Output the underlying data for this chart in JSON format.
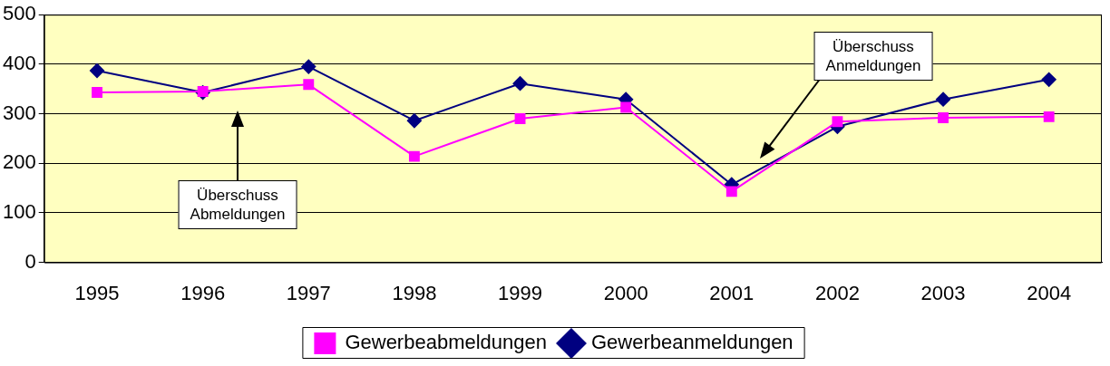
{
  "chart_data": {
    "type": "line",
    "categories": [
      "1995",
      "1996",
      "1997",
      "1998",
      "1999",
      "2000",
      "2001",
      "2002",
      "2003",
      "2004"
    ],
    "series": [
      {
        "name": "Gewerbeanmeldungen",
        "color": "#000080",
        "marker": "diamond",
        "values": [
          387,
          343,
          395,
          286,
          361,
          329,
          157,
          274,
          329,
          369
        ]
      },
      {
        "name": "Gewerbeabmeldungen",
        "color": "#ff00ff",
        "marker": "square",
        "values": [
          343,
          345,
          359,
          214,
          290,
          313,
          143,
          284,
          292,
          294
        ]
      }
    ],
    "ylim": [
      0,
      500
    ],
    "yticks": [
      0,
      100,
      200,
      300,
      400,
      500
    ],
    "grid": "y",
    "legend": "bottom",
    "line_style": "solid",
    "annotations": [
      "Überschuss\nAbmeldungen",
      "Überschuss\nAnmeldungen"
    ]
  }
}
